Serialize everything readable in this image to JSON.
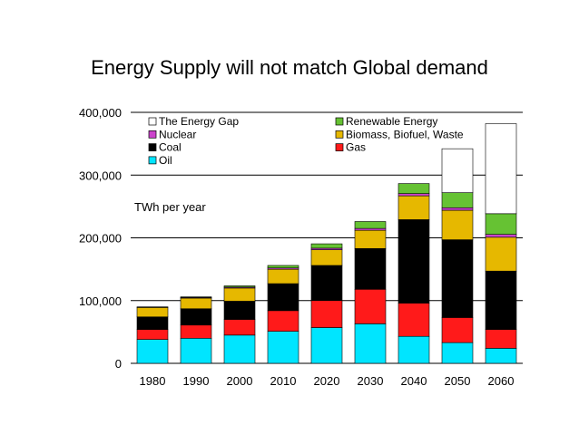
{
  "chart_data": {
    "type": "bar",
    "stacked": true,
    "title": "Energy Supply will not match Global demand",
    "ylabel": "TWh per year",
    "xlabel": "",
    "ylim": [
      0,
      400000
    ],
    "yticks": [
      0,
      100000,
      200000,
      300000,
      400000
    ],
    "ytick_labels": [
      "0",
      "100,000",
      "200,000",
      "300,000",
      "400,000"
    ],
    "grid": true,
    "legend_position": "top",
    "categories": [
      "1980",
      "1990",
      "2000",
      "2010",
      "2020",
      "2030",
      "2040",
      "2050",
      "2060"
    ],
    "series": [
      {
        "name": "Oil",
        "color": "#00e5ff",
        "values": [
          38000,
          40000,
          45000,
          51000,
          57000,
          63000,
          43000,
          33000,
          24000
        ]
      },
      {
        "name": "Gas",
        "color": "#ff1a1a",
        "values": [
          16000,
          21000,
          25000,
          33000,
          43000,
          55000,
          53000,
          40000,
          30000
        ]
      },
      {
        "name": "Coal",
        "color": "#000000",
        "values": [
          20000,
          26000,
          29000,
          43000,
          56000,
          65000,
          133000,
          124000,
          93000
        ]
      },
      {
        "name": "Biomass, Biofuel, Waste",
        "color": "#e6b800",
        "values": [
          15000,
          17000,
          21000,
          23000,
          25000,
          29000,
          38000,
          47000,
          54000
        ]
      },
      {
        "name": "Nuclear",
        "color": "#cc44cc",
        "values": [
          500,
          1000,
          1500,
          2000,
          2500,
          3000,
          3500,
          4000,
          4500
        ]
      },
      {
        "name": "Renewable Energy",
        "color": "#66c233",
        "values": [
          500,
          1000,
          2000,
          4000,
          7000,
          11000,
          16000,
          24000,
          33000
        ]
      },
      {
        "name": "The Energy Gap",
        "color": "#ffffff",
        "values": [
          0,
          0,
          0,
          0,
          0,
          0,
          0,
          70000,
          143500
        ]
      }
    ],
    "legend": [
      {
        "name": "The Energy Gap",
        "color": "#ffffff"
      },
      {
        "name": "Renewable Energy",
        "color": "#66c233"
      },
      {
        "name": "Nuclear",
        "color": "#cc44cc"
      },
      {
        "name": "Biomass, Biofuel, Waste",
        "color": "#e6b800"
      },
      {
        "name": "Coal",
        "color": "#000000"
      },
      {
        "name": "Gas",
        "color": "#ff1a1a"
      },
      {
        "name": "Oil",
        "color": "#00e5ff"
      }
    ]
  }
}
